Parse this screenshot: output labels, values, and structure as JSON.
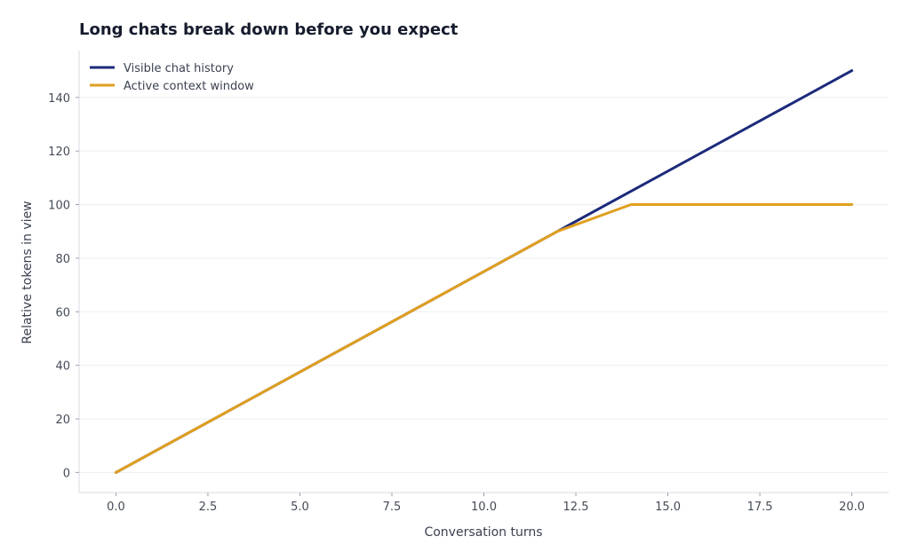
{
  "chart_data": {
    "type": "line",
    "title": "Long chats break down before you expect",
    "xlabel": "Conversation turns",
    "ylabel": "Relative tokens in view",
    "xlim": [
      -1,
      21
    ],
    "ylim": [
      -7.5,
      157.5
    ],
    "xticks": [
      0,
      2.5,
      5,
      7.5,
      10,
      12.5,
      15,
      17.5,
      20
    ],
    "xtick_labels": [
      "0.0",
      "2.5",
      "5.0",
      "7.5",
      "10.0",
      "12.5",
      "15.0",
      "17.5",
      "20.0"
    ],
    "yticks": [
      0,
      20,
      40,
      60,
      80,
      100,
      120,
      140
    ],
    "ytick_labels": [
      "0",
      "20",
      "40",
      "60",
      "80",
      "100",
      "120",
      "140"
    ],
    "grid": "horizontal",
    "legend_position": "top-left",
    "series": [
      {
        "name": "Visible chat history",
        "color": "#1c2a7a",
        "x": [
          0,
          20
        ],
        "y": [
          0,
          150
        ]
      },
      {
        "name": "Active context window",
        "color": "#e09f1f",
        "x": [
          0,
          12,
          14,
          20
        ],
        "y": [
          0,
          90,
          100,
          100
        ]
      }
    ]
  }
}
